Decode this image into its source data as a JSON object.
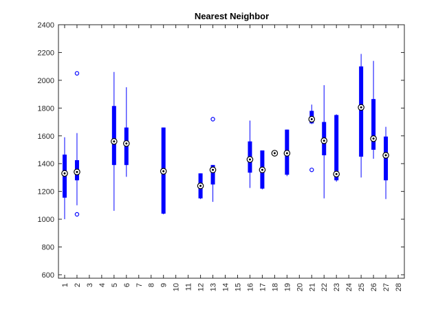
{
  "chart_data": {
    "type": "box",
    "title": "Nearest Neighbor",
    "xlabel": "",
    "ylabel": "",
    "xlim": [
      0.5,
      28.5
    ],
    "ylim": [
      575,
      2400
    ],
    "x_ticks": [
      1,
      2,
      3,
      4,
      5,
      6,
      7,
      8,
      9,
      10,
      11,
      12,
      13,
      14,
      15,
      16,
      17,
      18,
      19,
      20,
      21,
      22,
      23,
      24,
      25,
      26,
      27,
      28
    ],
    "y_ticks": [
      600,
      800,
      1000,
      1200,
      1400,
      1600,
      1800,
      2000,
      2200,
      2400
    ],
    "grid": false,
    "colors": {
      "box": "#0000ff",
      "median_outer": "#000000",
      "median_inner": "#ffffff",
      "outlier": "#0000ff",
      "axis": "#262626"
    },
    "boxes": [
      {
        "x": 1,
        "whisker_low": 1000,
        "q1": 1155,
        "median": 1330,
        "q3": 1465,
        "whisker_high": 1590,
        "outliers": []
      },
      {
        "x": 2,
        "whisker_low": 1100,
        "q1": 1280,
        "median": 1340,
        "q3": 1425,
        "whisker_high": 1620,
        "outliers": [
          1035,
          2050
        ]
      },
      {
        "x": 5,
        "whisker_low": 1060,
        "q1": 1390,
        "median": 1560,
        "q3": 1815,
        "whisker_high": 2060,
        "outliers": []
      },
      {
        "x": 6,
        "whisker_low": 1305,
        "q1": 1390,
        "median": 1545,
        "q3": 1660,
        "whisker_high": 1950,
        "outliers": []
      },
      {
        "x": 9,
        "whisker_low": 1035,
        "q1": 1040,
        "median": 1345,
        "q3": 1660,
        "whisker_high": 1660,
        "outliers": []
      },
      {
        "x": 12,
        "whisker_low": 1145,
        "q1": 1150,
        "median": 1240,
        "q3": 1330,
        "whisker_high": 1330,
        "outliers": []
      },
      {
        "x": 13,
        "whisker_low": 1125,
        "q1": 1250,
        "median": 1355,
        "q3": 1390,
        "whisker_high": 1390,
        "outliers": [
          1720
        ]
      },
      {
        "x": 16,
        "whisker_low": 1225,
        "q1": 1335,
        "median": 1430,
        "q3": 1560,
        "whisker_high": 1710,
        "outliers": []
      },
      {
        "x": 17,
        "whisker_low": 1215,
        "q1": 1220,
        "median": 1355,
        "q3": 1495,
        "whisker_high": 1495,
        "outliers": []
      },
      {
        "x": 18,
        "whisker_low": 1475,
        "q1": 1475,
        "median": 1475,
        "q3": 1475,
        "whisker_high": 1475,
        "outliers": []
      },
      {
        "x": 19,
        "whisker_low": 1310,
        "q1": 1320,
        "median": 1475,
        "q3": 1645,
        "whisker_high": 1645,
        "outliers": []
      },
      {
        "x": 21,
        "whisker_low": 1685,
        "q1": 1690,
        "median": 1720,
        "q3": 1780,
        "whisker_high": 1825,
        "outliers": [
          1355
        ]
      },
      {
        "x": 22,
        "whisker_low": 1150,
        "q1": 1460,
        "median": 1565,
        "q3": 1700,
        "whisker_high": 1965,
        "outliers": []
      },
      {
        "x": 23,
        "whisker_low": 1270,
        "q1": 1280,
        "median": 1325,
        "q3": 1750,
        "whisker_high": 1755,
        "outliers": []
      },
      {
        "x": 25,
        "whisker_low": 1300,
        "q1": 1450,
        "median": 1805,
        "q3": 2100,
        "whisker_high": 2190,
        "outliers": []
      },
      {
        "x": 26,
        "whisker_low": 1435,
        "q1": 1500,
        "median": 1580,
        "q3": 1865,
        "whisker_high": 2140,
        "outliers": []
      },
      {
        "x": 27,
        "whisker_low": 1145,
        "q1": 1280,
        "median": 1460,
        "q3": 1595,
        "whisker_high": 1665,
        "outliers": []
      }
    ]
  }
}
